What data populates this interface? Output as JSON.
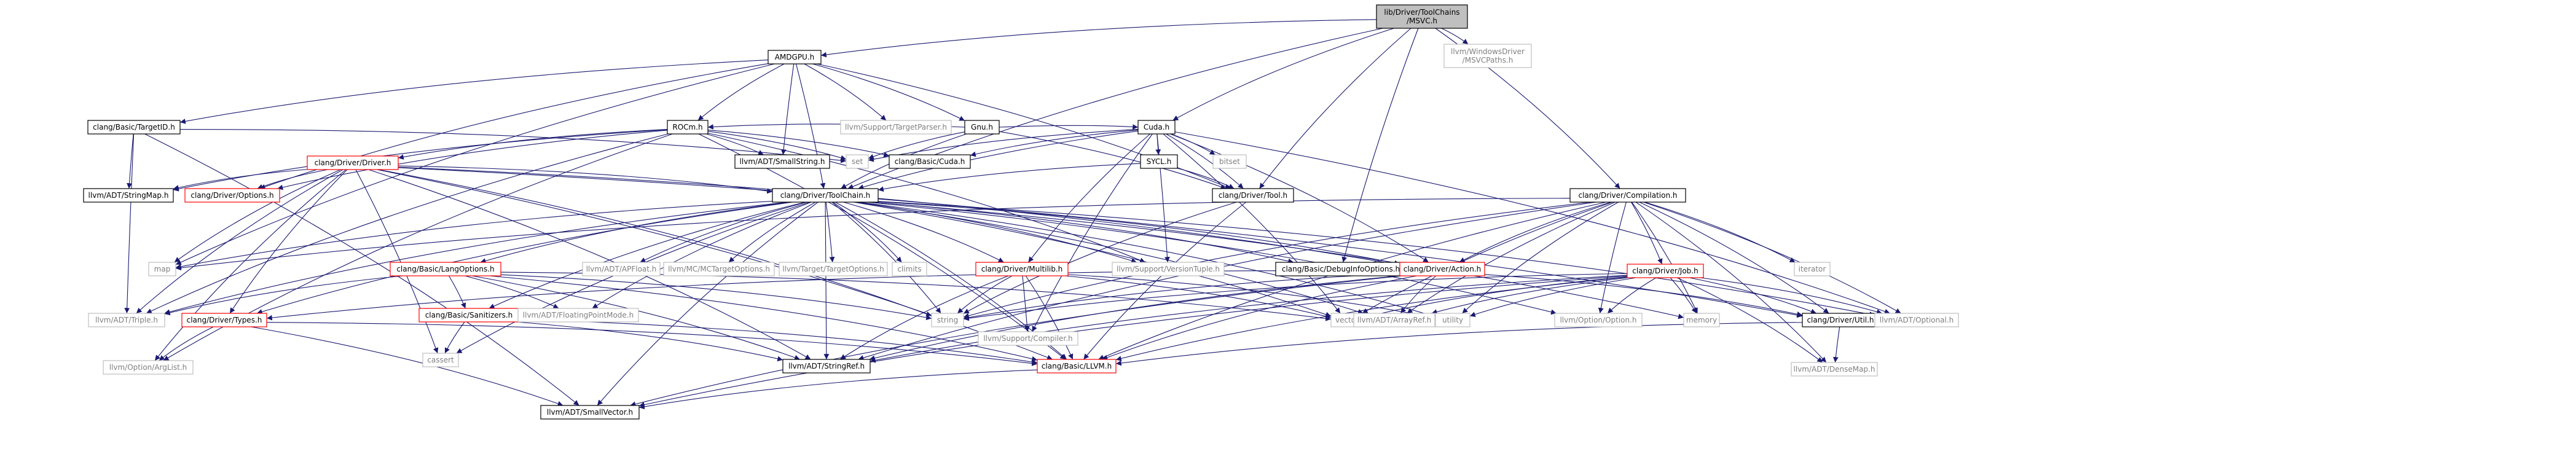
{
  "colors": {
    "root_fill": "#bfbfbf",
    "file_border": "#000000",
    "red_border": "#ff0000",
    "system_border": "#bfbfbf",
    "edge": "#191970",
    "text": "#000000",
    "system_text": "#808080"
  },
  "nodes": [
    {
      "id": "root",
      "lines": [
        "lib/Driver/ToolChains",
        "/MSVC.h"
      ],
      "kind": "root"
    },
    {
      "id": "amdgpu",
      "lines": [
        "AMDGPU.h"
      ],
      "kind": "file"
    },
    {
      "id": "windowsdriver",
      "lines": [
        "llvm/WindowsDriver",
        "/MSVCPaths.h"
      ],
      "kind": "system"
    },
    {
      "id": "targetid",
      "lines": [
        "clang/Basic/TargetID.h"
      ],
      "kind": "file"
    },
    {
      "id": "targetparser",
      "lines": [
        "llvm/Support/TargetParser.h"
      ],
      "kind": "system"
    },
    {
      "id": "gnu",
      "lines": [
        "Gnu.h"
      ],
      "kind": "file"
    },
    {
      "id": "rocm",
      "lines": [
        "ROCm.h"
      ],
      "kind": "file"
    },
    {
      "id": "cuda",
      "lines": [
        "Cuda.h"
      ],
      "kind": "file"
    },
    {
      "id": "smallstring",
      "lines": [
        "llvm/ADT/SmallString.h"
      ],
      "kind": "file"
    },
    {
      "id": "set",
      "lines": [
        "set"
      ],
      "kind": "system"
    },
    {
      "id": "basiccuda",
      "lines": [
        "clang/Basic/Cuda.h"
      ],
      "kind": "file"
    },
    {
      "id": "bitset",
      "lines": [
        "bitset"
      ],
      "kind": "system"
    },
    {
      "id": "sycl",
      "lines": [
        "SYCL.h"
      ],
      "kind": "file"
    },
    {
      "id": "driver",
      "lines": [
        "clang/Driver/Driver.h"
      ],
      "kind": "red"
    },
    {
      "id": "stringmap",
      "lines": [
        "llvm/ADT/StringMap.h"
      ],
      "kind": "file"
    },
    {
      "id": "options",
      "lines": [
        "clang/Driver/Options.h"
      ],
      "kind": "red"
    },
    {
      "id": "tool",
      "lines": [
        "clang/Driver/Tool.h"
      ],
      "kind": "file"
    },
    {
      "id": "toolchain",
      "lines": [
        "clang/Driver/ToolChain.h"
      ],
      "kind": "file"
    },
    {
      "id": "compilation",
      "lines": [
        "clang/Driver/Compilation.h"
      ],
      "kind": "file"
    },
    {
      "id": "map",
      "lines": [
        "map"
      ],
      "kind": "system"
    },
    {
      "id": "langoptions",
      "lines": [
        "clang/Basic/LangOptions.h"
      ],
      "kind": "red"
    },
    {
      "id": "apfloat",
      "lines": [
        "llvm/ADT/APFloat.h"
      ],
      "kind": "system"
    },
    {
      "id": "mctarget",
      "lines": [
        "llvm/MC/MCTargetOptions.h"
      ],
      "kind": "system"
    },
    {
      "id": "targetoptions",
      "lines": [
        "llvm/Target/TargetOptions.h"
      ],
      "kind": "system"
    },
    {
      "id": "climits",
      "lines": [
        "climits"
      ],
      "kind": "system"
    },
    {
      "id": "multilib",
      "lines": [
        "clang/Driver/Multilib.h"
      ],
      "kind": "red"
    },
    {
      "id": "versiontuple",
      "lines": [
        "llvm/Support/VersionTuple.h"
      ],
      "kind": "system"
    },
    {
      "id": "debuginfo",
      "lines": [
        "clang/Basic/DebugInfoOptions.h"
      ],
      "kind": "file"
    },
    {
      "id": "action",
      "lines": [
        "clang/Driver/Action.h"
      ],
      "kind": "red"
    },
    {
      "id": "iterator",
      "lines": [
        "iterator"
      ],
      "kind": "system"
    },
    {
      "id": "job",
      "lines": [
        "clang/Driver/Job.h"
      ],
      "kind": "red"
    },
    {
      "id": "triple",
      "lines": [
        "llvm/ADT/Triple.h"
      ],
      "kind": "system"
    },
    {
      "id": "types",
      "lines": [
        "clang/Driver/Types.h"
      ],
      "kind": "red"
    },
    {
      "id": "sanitizers",
      "lines": [
        "clang/Basic/Sanitizers.h"
      ],
      "kind": "red"
    },
    {
      "id": "fpmode",
      "lines": [
        "llvm/ADT/FloatingPointMode.h"
      ],
      "kind": "system"
    },
    {
      "id": "string",
      "lines": [
        "string"
      ],
      "kind": "system"
    },
    {
      "id": "compiler",
      "lines": [
        "llvm/Support/Compiler.h"
      ],
      "kind": "system"
    },
    {
      "id": "vector",
      "lines": [
        "vector"
      ],
      "kind": "system"
    },
    {
      "id": "arrayref",
      "lines": [
        "llvm/ADT/ArrayRef.h"
      ],
      "kind": "system"
    },
    {
      "id": "utility",
      "lines": [
        "utility"
      ],
      "kind": "system"
    },
    {
      "id": "optoption",
      "lines": [
        "llvm/Option/Option.h"
      ],
      "kind": "system"
    },
    {
      "id": "memory",
      "lines": [
        "memory"
      ],
      "kind": "system"
    },
    {
      "id": "util",
      "lines": [
        "clang/Driver/Util.h"
      ],
      "kind": "file"
    },
    {
      "id": "optional",
      "lines": [
        "llvm/ADT/Optional.h"
      ],
      "kind": "system"
    },
    {
      "id": "arglist",
      "lines": [
        "llvm/Option/ArgList.h"
      ],
      "kind": "system"
    },
    {
      "id": "cassert",
      "lines": [
        "cassert"
      ],
      "kind": "system"
    },
    {
      "id": "stringref",
      "lines": [
        "llvm/ADT/StringRef.h"
      ],
      "kind": "file"
    },
    {
      "id": "llvmh",
      "lines": [
        "clang/Basic/LLVM.h"
      ],
      "kind": "red"
    },
    {
      "id": "densemap",
      "lines": [
        "llvm/ADT/DenseMap.h"
      ],
      "kind": "system"
    },
    {
      "id": "smallvector",
      "lines": [
        "llvm/ADT/SmallVector.h"
      ],
      "kind": "file"
    }
  ],
  "edges": [
    [
      "root",
      "amdgpu"
    ],
    [
      "root",
      "windowsdriver"
    ],
    [
      "root",
      "cuda"
    ],
    [
      "root",
      "tool"
    ],
    [
      "root",
      "toolchain"
    ],
    [
      "root",
      "compilation"
    ],
    [
      "root",
      "debuginfo"
    ],
    [
      "amdgpu",
      "targetid"
    ],
    [
      "amdgpu",
      "targetparser"
    ],
    [
      "amdgpu",
      "gnu"
    ],
    [
      "amdgpu",
      "rocm"
    ],
    [
      "amdgpu",
      "smallstring"
    ],
    [
      "amdgpu",
      "toolchain"
    ],
    [
      "amdgpu",
      "options"
    ],
    [
      "amdgpu",
      "tool"
    ],
    [
      "amdgpu",
      "map"
    ],
    [
      "targetid",
      "set"
    ],
    [
      "targetid",
      "stringmap"
    ],
    [
      "targetid",
      "triple"
    ],
    [
      "targetid",
      "smallvector"
    ],
    [
      "gnu",
      "rocm"
    ],
    [
      "gnu",
      "cuda"
    ],
    [
      "gnu",
      "set"
    ],
    [
      "gnu",
      "tool"
    ],
    [
      "gnu",
      "toolchain"
    ],
    [
      "rocm",
      "set"
    ],
    [
      "rocm",
      "basiccuda"
    ],
    [
      "rocm",
      "smallstring"
    ],
    [
      "rocm",
      "stringmap"
    ],
    [
      "rocm",
      "options"
    ],
    [
      "rocm",
      "driver"
    ],
    [
      "rocm",
      "versiontuple"
    ],
    [
      "rocm",
      "llvmh"
    ],
    [
      "rocm",
      "triple"
    ],
    [
      "rocm",
      "arglist"
    ],
    [
      "cuda",
      "set"
    ],
    [
      "cuda",
      "basiccuda"
    ],
    [
      "cuda",
      "bitset"
    ],
    [
      "cuda",
      "sycl"
    ],
    [
      "cuda",
      "tool"
    ],
    [
      "cuda",
      "toolchain"
    ],
    [
      "cuda",
      "multilib"
    ],
    [
      "cuda",
      "action"
    ],
    [
      "cuda",
      "versiontuple"
    ],
    [
      "cuda",
      "compiler"
    ],
    [
      "cuda",
      "vector"
    ],
    [
      "cuda",
      "optional"
    ],
    [
      "sycl",
      "tool"
    ],
    [
      "sycl",
      "toolchain"
    ],
    [
      "driver",
      "stringmap"
    ],
    [
      "driver",
      "options"
    ],
    [
      "driver",
      "toolchain"
    ],
    [
      "driver",
      "action"
    ],
    [
      "driver",
      "types"
    ],
    [
      "driver",
      "util"
    ],
    [
      "driver",
      "map"
    ],
    [
      "driver",
      "string"
    ],
    [
      "driver",
      "stringref"
    ],
    [
      "driver",
      "triple"
    ],
    [
      "driver",
      "arglist"
    ],
    [
      "driver",
      "llvmh"
    ],
    [
      "driver",
      "cassert"
    ],
    [
      "tool",
      "llvmh"
    ],
    [
      "tool",
      "string"
    ],
    [
      "toolchain",
      "map"
    ],
    [
      "toolchain",
      "langoptions"
    ],
    [
      "toolchain",
      "apfloat"
    ],
    [
      "toolchain",
      "mctarget"
    ],
    [
      "toolchain",
      "targetoptions"
    ],
    [
      "toolchain",
      "climits"
    ],
    [
      "toolchain",
      "multilib"
    ],
    [
      "toolchain",
      "versiontuple"
    ],
    [
      "toolchain",
      "debuginfo"
    ],
    [
      "toolchain",
      "action"
    ],
    [
      "toolchain",
      "triple"
    ],
    [
      "toolchain",
      "types"
    ],
    [
      "toolchain",
      "sanitizers"
    ],
    [
      "toolchain",
      "fpmode"
    ],
    [
      "toolchain",
      "string"
    ],
    [
      "toolchain",
      "vector"
    ],
    [
      "toolchain",
      "arrayref"
    ],
    [
      "toolchain",
      "utility"
    ],
    [
      "toolchain",
      "optoption"
    ],
    [
      "toolchain",
      "memory"
    ],
    [
      "toolchain",
      "cassert"
    ],
    [
      "toolchain",
      "stringref"
    ],
    [
      "toolchain",
      "llvmh"
    ],
    [
      "toolchain",
      "smallvector"
    ],
    [
      "toolchain",
      "optional"
    ],
    [
      "compilation",
      "map"
    ],
    [
      "compilation",
      "iterator"
    ],
    [
      "compilation",
      "job"
    ],
    [
      "compilation",
      "action"
    ],
    [
      "compilation",
      "util"
    ],
    [
      "compilation",
      "optional"
    ],
    [
      "compilation",
      "arrayref"
    ],
    [
      "compilation",
      "vector"
    ],
    [
      "compilation",
      "utility"
    ],
    [
      "compilation",
      "optoption"
    ],
    [
      "compilation",
      "memory"
    ],
    [
      "compilation",
      "string"
    ],
    [
      "compilation",
      "densemap"
    ],
    [
      "compilation",
      "stringref"
    ],
    [
      "compilation",
      "llvmh"
    ],
    [
      "langoptions",
      "sanitizers"
    ],
    [
      "langoptions",
      "fpmode"
    ],
    [
      "langoptions",
      "string"
    ],
    [
      "langoptions",
      "vector"
    ],
    [
      "langoptions",
      "triple"
    ],
    [
      "langoptions",
      "stringref"
    ],
    [
      "langoptions",
      "llvmh"
    ],
    [
      "multilib",
      "string"
    ],
    [
      "multilib",
      "compiler"
    ],
    [
      "multilib",
      "vector"
    ],
    [
      "multilib",
      "utility"
    ],
    [
      "multilib",
      "stringref"
    ],
    [
      "multilib",
      "llvmh"
    ],
    [
      "action",
      "types"
    ],
    [
      "action",
      "util"
    ],
    [
      "action",
      "arrayref"
    ],
    [
      "action",
      "string"
    ],
    [
      "action",
      "llvmh"
    ],
    [
      "action",
      "smallvector"
    ],
    [
      "action",
      "stringref"
    ],
    [
      "job",
      "util"
    ],
    [
      "job",
      "arrayref"
    ],
    [
      "job",
      "optional"
    ],
    [
      "job",
      "string"
    ],
    [
      "job",
      "vector"
    ],
    [
      "job",
      "utility"
    ],
    [
      "job",
      "memory"
    ],
    [
      "job",
      "optoption"
    ],
    [
      "job",
      "smallvector"
    ],
    [
      "job",
      "stringref"
    ],
    [
      "job",
      "llvmh"
    ],
    [
      "job",
      "densemap"
    ],
    [
      "types",
      "arglist"
    ],
    [
      "types",
      "smallvector"
    ],
    [
      "types",
      "llvmh"
    ],
    [
      "sanitizers",
      "cassert"
    ],
    [
      "sanitizers",
      "stringref"
    ],
    [
      "sanitizers",
      "llvmh"
    ],
    [
      "util",
      "densemap"
    ],
    [
      "util",
      "llvmh"
    ],
    [
      "llvmh",
      "smallvector"
    ]
  ]
}
